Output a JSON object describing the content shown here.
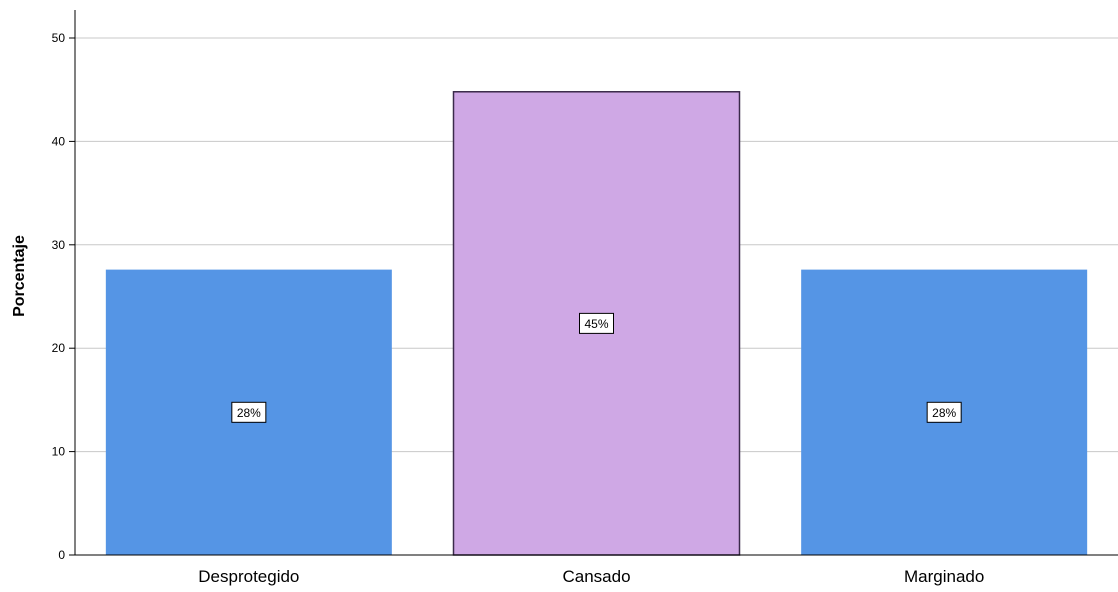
{
  "chart_data": {
    "type": "bar",
    "categories": [
      "Desprotegido",
      "Cansado",
      "Marginado"
    ],
    "values": [
      27.6,
      44.8,
      27.6
    ],
    "data_labels": [
      "28%",
      "45%",
      "28%"
    ],
    "ylabel": "Porcentaje",
    "xlabel": "",
    "ylim": [
      0,
      52
    ],
    "yticks": [
      0,
      10,
      20,
      30,
      40,
      50
    ],
    "grid": true,
    "bar_colors": [
      "#5595e5",
      "#cfa8e5",
      "#5595e5"
    ],
    "highlight_outline": "#3a2a4a"
  }
}
